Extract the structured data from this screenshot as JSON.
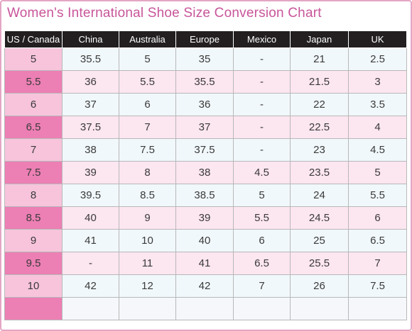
{
  "title": "Women's International Shoe Size Conversion Chart",
  "colors": {
    "title": "#c8559a",
    "border": "#e4a6c4",
    "header_bg": "#231f20",
    "us_col_light": "#f7c4dc",
    "us_col_dark": "#ec7fb4",
    "row_light": "#f1f8fb",
    "row_pink": "#fce6f0"
  },
  "table": {
    "headers": [
      "US / Canada",
      "China",
      "Australia",
      "Europe",
      "Mexico",
      "Japan",
      "UK"
    ],
    "rows": [
      [
        "5",
        "35.5",
        "5",
        "35",
        "-",
        "21",
        "2.5"
      ],
      [
        "5.5",
        "36",
        "5.5",
        "35.5",
        "-",
        "21.5",
        "3"
      ],
      [
        "6",
        "37",
        "6",
        "36",
        "-",
        "22",
        "3.5"
      ],
      [
        "6.5",
        "37.5",
        "7",
        "37",
        "-",
        "22.5",
        "4"
      ],
      [
        "7",
        "38",
        "7.5",
        "37.5",
        "-",
        "23",
        "4.5"
      ],
      [
        "7.5",
        "39",
        "8",
        "38",
        "4.5",
        "23.5",
        "5"
      ],
      [
        "8",
        "39.5",
        "8.5",
        "38.5",
        "5",
        "24",
        "5.5"
      ],
      [
        "8.5",
        "40",
        "9",
        "39",
        "5.5",
        "24.5",
        "6"
      ],
      [
        "9",
        "41",
        "10",
        "40",
        "6",
        "25",
        "6.5"
      ],
      [
        "9.5",
        "-",
        "11",
        "41",
        "6.5",
        "25.5",
        "7"
      ],
      [
        "10",
        "42",
        "12",
        "42",
        "7",
        "26",
        "7.5"
      ],
      [
        "",
        "",
        "",
        "",
        "",
        "",
        ""
      ]
    ]
  }
}
